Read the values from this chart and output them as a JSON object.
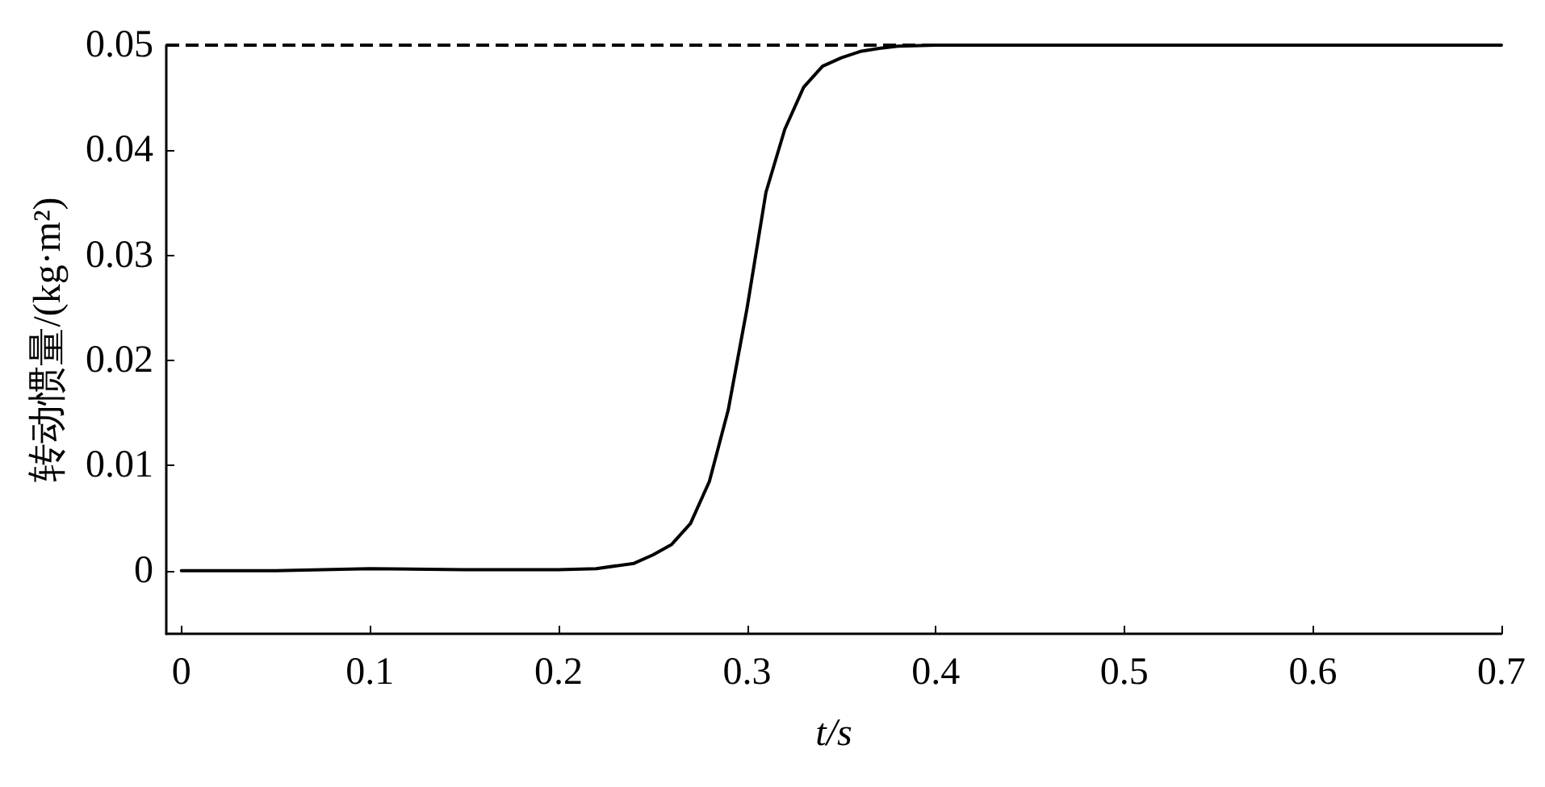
{
  "chart_data": {
    "type": "line",
    "xlabel": "t/s",
    "ylabel": "转动惯量/(kg·m²)",
    "xlim": [
      -0.008,
      0.7
    ],
    "ylim": [
      -0.006,
      0.05
    ],
    "xticks": [
      0,
      0.1,
      0.2,
      0.3,
      0.4,
      0.5,
      0.6,
      0.7
    ],
    "yticks": [
      0,
      0.01,
      0.02,
      0.03,
      0.04,
      0.05
    ],
    "grid": false,
    "marker": "none",
    "line_style": "solid",
    "series": [
      {
        "color": "#000000",
        "x": [
          0,
          0.05,
          0.1,
          0.15,
          0.2,
          0.22,
          0.24,
          0.25,
          0.26,
          0.27,
          0.28,
          0.29,
          0.3,
          0.31,
          0.32,
          0.33,
          0.34,
          0.35,
          0.36,
          0.37,
          0.38,
          0.4,
          0.5,
          0.6,
          0.7
        ],
        "values": [
          0,
          0,
          0.0002,
          0.0001,
          0.0001,
          0.0002,
          0.0007,
          0.0015,
          0.0025,
          0.0045,
          0.0085,
          0.0153,
          0.025,
          0.036,
          0.042,
          0.046,
          0.048,
          0.0488,
          0.0494,
          0.0497,
          0.0499,
          0.05,
          0.05,
          0.05,
          0.05
        ]
      }
    ],
    "ref_lines": [
      {
        "axis": "y",
        "value": 0.05,
        "color": "#000000",
        "line_style": "dashed"
      }
    ]
  }
}
